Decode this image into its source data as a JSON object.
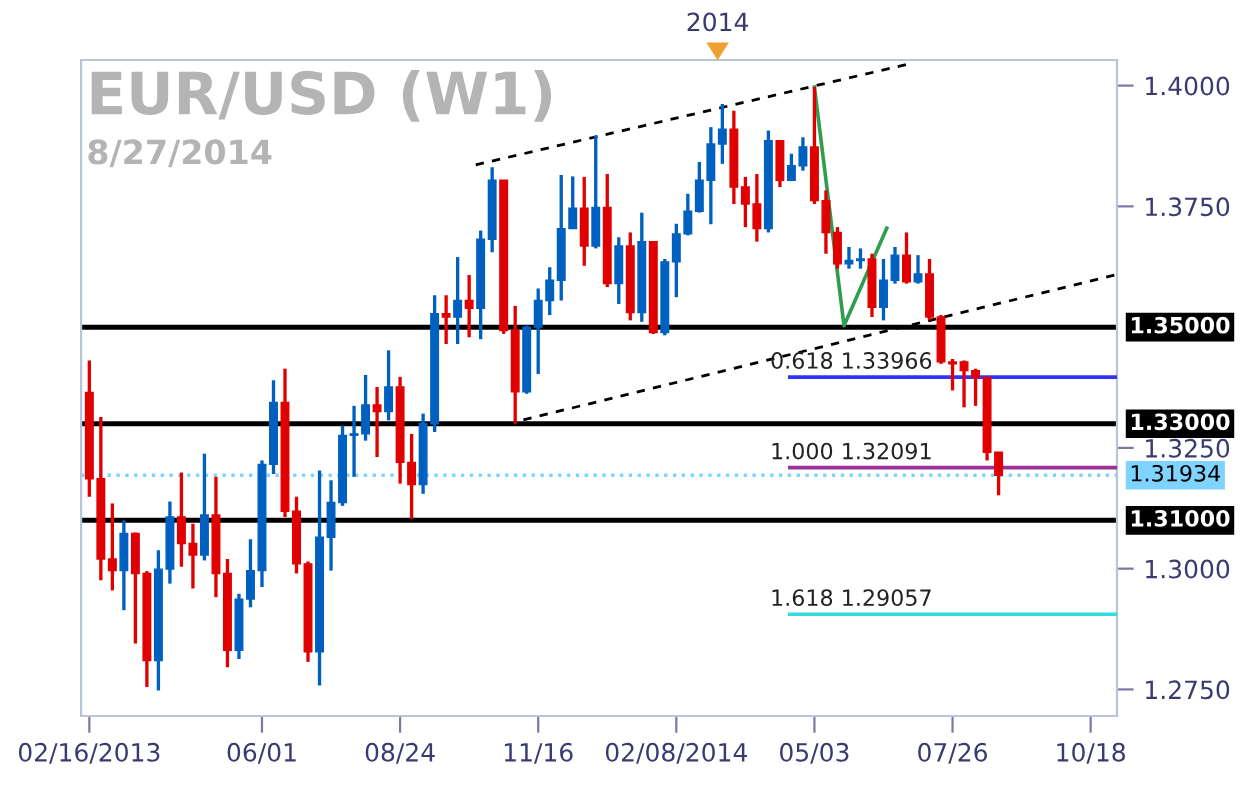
{
  "chart_data": {
    "type": "candlestick",
    "title": "EUR/USD (W1)",
    "subtitle": "8/27/2014",
    "x": [
      "2013-02-16",
      "2013-02-23",
      "2013-03-02",
      "2013-03-09",
      "2013-03-16",
      "2013-03-23",
      "2013-03-30",
      "2013-04-06",
      "2013-04-13",
      "2013-04-20",
      "2013-04-27",
      "2013-05-04",
      "2013-05-11",
      "2013-05-18",
      "2013-05-25",
      "2013-06-01",
      "2013-06-08",
      "2013-06-15",
      "2013-06-22",
      "2013-06-29",
      "2013-07-06",
      "2013-07-13",
      "2013-07-20",
      "2013-07-27",
      "2013-08-03",
      "2013-08-10",
      "2013-08-17",
      "2013-08-24",
      "2013-08-31",
      "2013-09-07",
      "2013-09-14",
      "2013-09-21",
      "2013-09-28",
      "2013-10-05",
      "2013-10-12",
      "2013-10-19",
      "2013-10-26",
      "2013-11-02",
      "2013-11-09",
      "2013-11-16",
      "2013-11-23",
      "2013-11-30",
      "2013-12-07",
      "2013-12-14",
      "2013-12-21",
      "2013-12-28",
      "2014-01-04",
      "2014-01-11",
      "2014-01-18",
      "2014-01-25",
      "2014-02-01",
      "2014-02-08",
      "2014-02-15",
      "2014-02-22",
      "2014-03-01",
      "2014-03-08",
      "2014-03-15",
      "2014-03-22",
      "2014-03-29",
      "2014-04-05",
      "2014-04-12",
      "2014-04-19",
      "2014-04-26",
      "2014-05-03",
      "2014-05-10",
      "2014-05-17",
      "2014-05-24",
      "2014-05-31",
      "2014-06-07",
      "2014-06-14",
      "2014-06-21",
      "2014-06-28",
      "2014-07-05",
      "2014-07-12",
      "2014-07-19",
      "2014-07-26",
      "2014-08-02",
      "2014-08-09",
      "2014-08-16",
      "2014-08-23"
    ],
    "ohlc": [
      [
        1.3365,
        1.3431,
        1.3149,
        1.3186
      ],
      [
        1.3186,
        1.3314,
        1.2976,
        1.302
      ],
      [
        1.302,
        1.3135,
        1.2955,
        1.2996
      ],
      [
        1.2996,
        1.31,
        1.2914,
        1.3073
      ],
      [
        1.3073,
        1.3075,
        1.2845,
        1.299
      ],
      [
        1.299,
        1.2995,
        1.2755,
        1.281
      ],
      [
        1.281,
        1.3038,
        1.2748,
        1.2999
      ],
      [
        1.2999,
        1.3139,
        1.2969,
        1.3107
      ],
      [
        1.3107,
        1.3199,
        1.3004,
        1.3052
      ],
      [
        1.3052,
        1.3093,
        1.2959,
        1.3028
      ],
      [
        1.3028,
        1.3238,
        1.3017,
        1.3111
      ],
      [
        1.3111,
        1.319,
        1.2941,
        1.299
      ],
      [
        1.299,
        1.302,
        1.2796,
        1.2831
      ],
      [
        1.2831,
        1.2948,
        1.2813,
        1.2937
      ],
      [
        1.2937,
        1.3061,
        1.292,
        1.2996
      ],
      [
        1.2996,
        1.3224,
        1.2962,
        1.3216
      ],
      [
        1.3216,
        1.339,
        1.3196,
        1.3344
      ],
      [
        1.3344,
        1.3414,
        1.3107,
        1.3119
      ],
      [
        1.3119,
        1.3149,
        1.299,
        1.301
      ],
      [
        1.301,
        1.3015,
        1.2807,
        1.2828
      ],
      [
        1.2828,
        1.3203,
        1.2758,
        1.3065
      ],
      [
        1.3065,
        1.3183,
        1.2996,
        1.3137
      ],
      [
        1.3137,
        1.3296,
        1.313,
        1.3276
      ],
      [
        1.3276,
        1.3337,
        1.319,
        1.3279
      ],
      [
        1.3279,
        1.3401,
        1.3265,
        1.3339
      ],
      [
        1.3339,
        1.3376,
        1.3231,
        1.3325
      ],
      [
        1.3325,
        1.3452,
        1.3307,
        1.3376
      ],
      [
        1.3376,
        1.3397,
        1.3176,
        1.322
      ],
      [
        1.322,
        1.3279,
        1.3103,
        1.3174
      ],
      [
        1.3174,
        1.3321,
        1.3155,
        1.33
      ],
      [
        1.33,
        1.3566,
        1.3283,
        1.3528
      ],
      [
        1.3528,
        1.3566,
        1.3465,
        1.3521
      ],
      [
        1.3521,
        1.3645,
        1.3465,
        1.3555
      ],
      [
        1.3555,
        1.3608,
        1.3479,
        1.3539
      ],
      [
        1.3539,
        1.37,
        1.3475,
        1.3682
      ],
      [
        1.3682,
        1.3831,
        1.3655,
        1.3804
      ],
      [
        1.3804,
        1.3804,
        1.3486,
        1.3493
      ],
      [
        1.3493,
        1.3544,
        1.33,
        1.3366
      ],
      [
        1.3366,
        1.3503,
        1.3362,
        1.35
      ],
      [
        1.35,
        1.358,
        1.3403,
        1.3555
      ],
      [
        1.3555,
        1.3624,
        1.3525,
        1.3597
      ],
      [
        1.3597,
        1.3815,
        1.3555,
        1.3704
      ],
      [
        1.3704,
        1.3812,
        1.3704,
        1.3746
      ],
      [
        1.3746,
        1.3811,
        1.3627,
        1.3668
      ],
      [
        1.3668,
        1.3897,
        1.3663,
        1.3748
      ],
      [
        1.3748,
        1.3817,
        1.3583,
        1.359
      ],
      [
        1.359,
        1.3686,
        1.3548,
        1.3668
      ],
      [
        1.3668,
        1.3696,
        1.3514,
        1.353
      ],
      [
        1.353,
        1.3737,
        1.3511,
        1.3677
      ],
      [
        1.3677,
        1.3677,
        1.3486,
        1.3489
      ],
      [
        1.3489,
        1.3641,
        1.3483,
        1.3635
      ],
      [
        1.3635,
        1.3714,
        1.3562,
        1.3693
      ],
      [
        1.3693,
        1.3776,
        1.369,
        1.374
      ],
      [
        1.374,
        1.3842,
        1.3737,
        1.3804
      ],
      [
        1.3804,
        1.3914,
        1.3713,
        1.3879
      ],
      [
        1.3879,
        1.3962,
        1.3838,
        1.391
      ],
      [
        1.391,
        1.3948,
        1.3755,
        1.379
      ],
      [
        1.379,
        1.3811,
        1.3707,
        1.3755
      ],
      [
        1.3755,
        1.3817,
        1.3677,
        1.3704
      ],
      [
        1.3704,
        1.3907,
        1.3696,
        1.3886
      ],
      [
        1.3886,
        1.3886,
        1.379,
        1.3804
      ],
      [
        1.3804,
        1.3859,
        1.3804,
        1.3834
      ],
      [
        1.3834,
        1.3893,
        1.3824,
        1.3873
      ],
      [
        1.3873,
        1.3997,
        1.3755,
        1.3762
      ],
      [
        1.3762,
        1.3783,
        1.3652,
        1.3696
      ],
      [
        1.3696,
        1.3707,
        1.3621,
        1.3631
      ],
      [
        1.3631,
        1.3666,
        1.3621,
        1.3638
      ],
      [
        1.3638,
        1.3663,
        1.3621,
        1.3641
      ],
      [
        1.3641,
        1.3652,
        1.3521,
        1.3541
      ],
      [
        1.3541,
        1.3641,
        1.3514,
        1.3597
      ],
      [
        1.3597,
        1.3666,
        1.359,
        1.3649
      ],
      [
        1.3649,
        1.3696,
        1.359,
        1.3594
      ],
      [
        1.3594,
        1.3649,
        1.359,
        1.361
      ],
      [
        1.361,
        1.3641,
        1.3514,
        1.3521
      ],
      [
        1.3521,
        1.3525,
        1.3424,
        1.3428
      ],
      [
        1.3428,
        1.3434,
        1.3369,
        1.3424
      ],
      [
        1.3428,
        1.3431,
        1.3334,
        1.341
      ],
      [
        1.341,
        1.3414,
        1.3337,
        1.3396
      ],
      [
        1.3396,
        1.3396,
        1.3224,
        1.3241
      ],
      [
        1.3241,
        1.3241,
        1.3152,
        1.31934
      ]
    ],
    "colors": [
      "#e00000",
      "#e00000",
      "#e00000",
      "#0060c0",
      "#e00000",
      "#e00000",
      "#0060c0",
      "#0060c0",
      "#e00000",
      "#e00000",
      "#0060c0",
      "#e00000",
      "#e00000",
      "#0060c0",
      "#0060c0",
      "#0060c0",
      "#0060c0",
      "#e00000",
      "#e00000",
      "#e00000",
      "#0060c0",
      "#0060c0",
      "#0060c0",
      "#0060c0",
      "#0060c0",
      "#e00000",
      "#0060c0",
      "#e00000",
      "#e00000",
      "#0060c0",
      "#0060c0",
      "#e00000",
      "#0060c0",
      "#e00000",
      "#0060c0",
      "#0060c0",
      "#e00000",
      "#e00000",
      "#0060c0",
      "#0060c0",
      "#0060c0",
      "#0060c0",
      "#0060c0",
      "#e00000",
      "#0060c0",
      "#e00000",
      "#0060c0",
      "#e00000",
      "#0060c0",
      "#e00000",
      "#0060c0",
      "#0060c0",
      "#0060c0",
      "#0060c0",
      "#0060c0",
      "#0060c0",
      "#e00000",
      "#e00000",
      "#e00000",
      "#0060c0",
      "#e00000",
      "#0060c0",
      "#0060c0",
      "#e00000",
      "#e00000",
      "#e00000",
      "#0060c0",
      "#0060c0",
      "#e00000",
      "#0060c0",
      "#0060c0",
      "#e00000",
      "#0060c0",
      "#e00000",
      "#e00000",
      "#e00000",
      "#e00000",
      "#e00000",
      "#e00000",
      "#e00000"
    ],
    "series": [
      {
        "type": "line",
        "color": "#000000",
        "line_style": "dashed",
        "x": [
          "2013-10-09",
          "2014-07-01"
        ],
        "values": [
          1.3836,
          1.4046
        ]
      },
      {
        "type": "line",
        "color": "#000000",
        "line_style": "dashed",
        "x": [
          "2013-11-07",
          "2014-11-02"
        ],
        "values": [
          1.3308,
          1.3608
        ]
      },
      {
        "type": "line",
        "color": "#2e9e4e",
        "line_style": "solid",
        "x": [
          "2014-05-03",
          "2014-05-21",
          "2014-06-16"
        ],
        "values": [
          1.3997,
          1.3503,
          1.3705
        ]
      },
      {
        "type": "line",
        "color": "#3333ff",
        "line_style": "solid",
        "x": [
          "2014-04-18",
          "2014-11-03"
        ],
        "values": [
          1.33966,
          1.33966
        ]
      },
      {
        "type": "line",
        "color": "#993399",
        "line_style": "solid",
        "x": [
          "2014-04-18",
          "2014-11-03"
        ],
        "values": [
          1.32091,
          1.32091
        ]
      },
      {
        "type": "line",
        "color": "#33dddd",
        "line_style": "solid",
        "x": [
          "2014-04-18",
          "2014-11-03"
        ],
        "values": [
          1.29057,
          1.29057
        ]
      }
    ],
    "ref_lines": [
      {
        "axis": "y",
        "value": 1.35,
        "label": "1.35000",
        "color": "#000000",
        "line_style": "solid"
      },
      {
        "axis": "y",
        "value": 1.33,
        "label": "1.33000",
        "color": "#000000",
        "line_style": "solid"
      },
      {
        "axis": "y",
        "value": 1.31,
        "label": "1.31000",
        "color": "#000000",
        "line_style": "solid"
      },
      {
        "axis": "y",
        "value": 1.31934,
        "label": "1.31934",
        "color": "#7fd4ff",
        "line_style": "dotted"
      }
    ],
    "annotations": [
      "2014",
      {
        "text": "0.618 1.33966",
        "x": "2014-04-18",
        "y": 1.33966
      },
      {
        "text": "1.000 1.32091",
        "x": "2014-04-18",
        "y": 1.32091
      },
      {
        "text": "1.618 1.29057",
        "x": "2014-04-18",
        "y": 1.29057
      }
    ],
    "xlim": [
      "2013-02-11",
      "2014-11-03"
    ],
    "xticks": [
      {
        "value": "2013-02-16",
        "label": "02/16/2013"
      },
      {
        "value": "2013-06-01",
        "label": "06/01"
      },
      {
        "value": "2013-08-24",
        "label": "08/24"
      },
      {
        "value": "2013-11-16",
        "label": "11/16"
      },
      {
        "value": "2014-02-08",
        "label": "02/08/2014"
      },
      {
        "value": "2014-05-03",
        "label": "05/03"
      },
      {
        "value": "2014-07-26",
        "label": "07/26"
      },
      {
        "value": "2014-10-18",
        "label": "10/18"
      }
    ],
    "ylim": [
      1.2695,
      1.4053
    ],
    "yticks": [
      {
        "value": 1.275,
        "label": "1.2750"
      },
      {
        "value": 1.3,
        "label": "1.3000"
      },
      {
        "value": 1.325,
        "label": "1.3250"
      },
      {
        "value": 1.375,
        "label": "1.3750"
      },
      {
        "value": 1.4,
        "label": "1.4000"
      }
    ],
    "grid": false,
    "legend": false
  }
}
